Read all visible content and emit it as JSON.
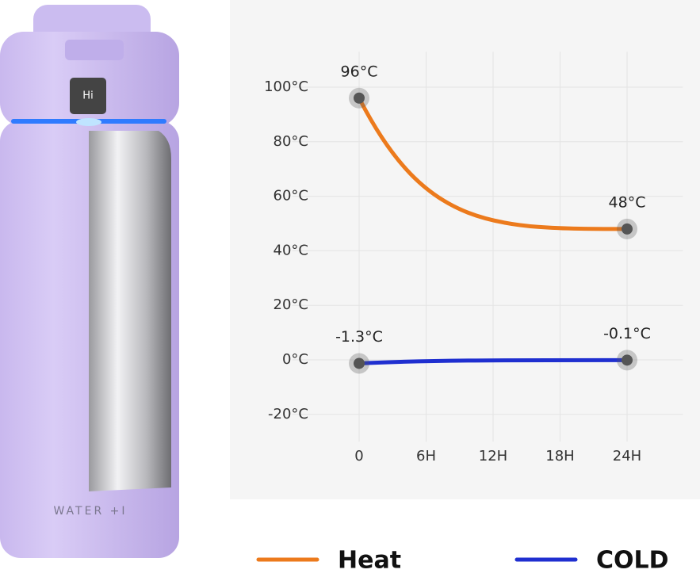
{
  "product": {
    "display": "Hi",
    "brand": "WATER +I"
  },
  "chart_data": {
    "type": "line",
    "xlim": [
      -6,
      29
    ],
    "xticks": [
      0,
      {
        "value": 6,
        "label": "6H"
      },
      {
        "value": 12,
        "label": "12H"
      },
      {
        "value": 18,
        "label": "18H"
      },
      {
        "value": 24,
        "label": "24H"
      }
    ],
    "ylim": [
      -30,
      113
    ],
    "yticks": [
      {
        "value": -20,
        "label": "-20°C"
      },
      {
        "value": 0,
        "label": "0°C"
      },
      {
        "value": 20,
        "label": "20°C"
      },
      {
        "value": 40,
        "label": "40°C"
      },
      {
        "value": 60,
        "label": "60°C"
      },
      {
        "value": 80,
        "label": "80°C"
      },
      {
        "value": 100,
        "label": "100°C"
      }
    ],
    "grid": true,
    "legend": "bottom",
    "series": [
      {
        "name": "Heat",
        "color": "#ec7a1c",
        "x": [
          0,
          24
        ],
        "values": [
          96,
          48
        ],
        "value_labels": [
          "96°C",
          "48°C"
        ]
      },
      {
        "name": "COLD",
        "color": "#1f2fd0",
        "x": [
          0,
          24
        ],
        "values": [
          -1.3,
          -0.1
        ],
        "value_labels": [
          "-1.3°C",
          "-0.1°C"
        ]
      }
    ]
  }
}
